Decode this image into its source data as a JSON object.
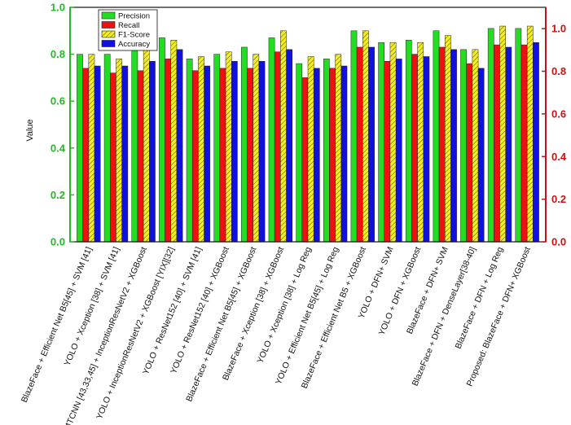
{
  "chart_data": {
    "type": "bar",
    "title": "",
    "ylabel": "Value",
    "xlabel": "",
    "ylim": [
      0,
      1.0
    ],
    "y2lim": [
      0,
      1.1
    ],
    "yticks": [
      "0.0",
      "0.2",
      "0.4",
      "0.6",
      "0.8",
      "1.0"
    ],
    "y2ticks": [
      "0.0",
      "0.2",
      "0.4",
      "0.6",
      "0.8",
      "1.0"
    ],
    "legend_position": "top-left",
    "categories": [
      "BlazeFace + Efficient Net B5[45] + SVM [41]",
      "YOLO + Xception [38] + SVM [41]",
      "MTCNN [43,33,45] + InceptionResNetV2 + XGBoost",
      "YOLO + InceptionResNetV2 + XGBoost [YIX][32]",
      "YOLO + ResNet152 [40] + SVM [41]",
      "YOLO + ResNet152 [40] + XGBoost",
      "BlazeFace + Efficient Net B5[45] + XGBoost",
      "BlazeFace + Xception [38] + XGBoost",
      "YOLO + Xception [38] + Log Reg",
      "YOLO + Efficient Net B5[45] + Log Reg",
      "BlazeFace + Efficient Net B5 + XGBoost",
      "YOLO + DFN+ SVM",
      "YOLO + DFN + XGBoost",
      "BlazeFace + DFN+ SVM",
      "BlazeFace + DFN + DenseLayer[38-40]",
      "BlazeFace + DFN + Log Reg",
      "Proposed: BlazeFace + DFN+ XGBoost"
    ],
    "series": [
      {
        "name": "Precision",
        "color": "#22dd22",
        "pattern": "solid",
        "values": [
          0.8,
          0.8,
          0.83,
          0.87,
          0.78,
          0.8,
          0.83,
          0.87,
          0.76,
          0.78,
          0.9,
          0.85,
          0.86,
          0.9,
          0.82,
          0.91,
          0.91
        ]
      },
      {
        "name": "Recall",
        "color": "#ee1111",
        "pattern": "solid",
        "values": [
          0.74,
          0.72,
          0.73,
          0.78,
          0.73,
          0.74,
          0.74,
          0.81,
          0.7,
          0.74,
          0.83,
          0.77,
          0.8,
          0.83,
          0.76,
          0.84,
          0.84
        ]
      },
      {
        "name": "F1-Score",
        "color": "#f2ee22",
        "pattern": "hatched",
        "values": [
          0.8,
          0.78,
          0.82,
          0.86,
          0.79,
          0.81,
          0.8,
          0.9,
          0.79,
          0.8,
          0.9,
          0.85,
          0.85,
          0.88,
          0.82,
          0.92,
          0.92
        ]
      },
      {
        "name": "Accuracy",
        "color": "#1111dd",
        "pattern": "solid",
        "values": [
          0.75,
          0.75,
          0.77,
          0.82,
          0.75,
          0.77,
          0.77,
          0.82,
          0.74,
          0.75,
          0.83,
          0.78,
          0.79,
          0.82,
          0.74,
          0.83,
          0.85
        ]
      }
    ]
  }
}
